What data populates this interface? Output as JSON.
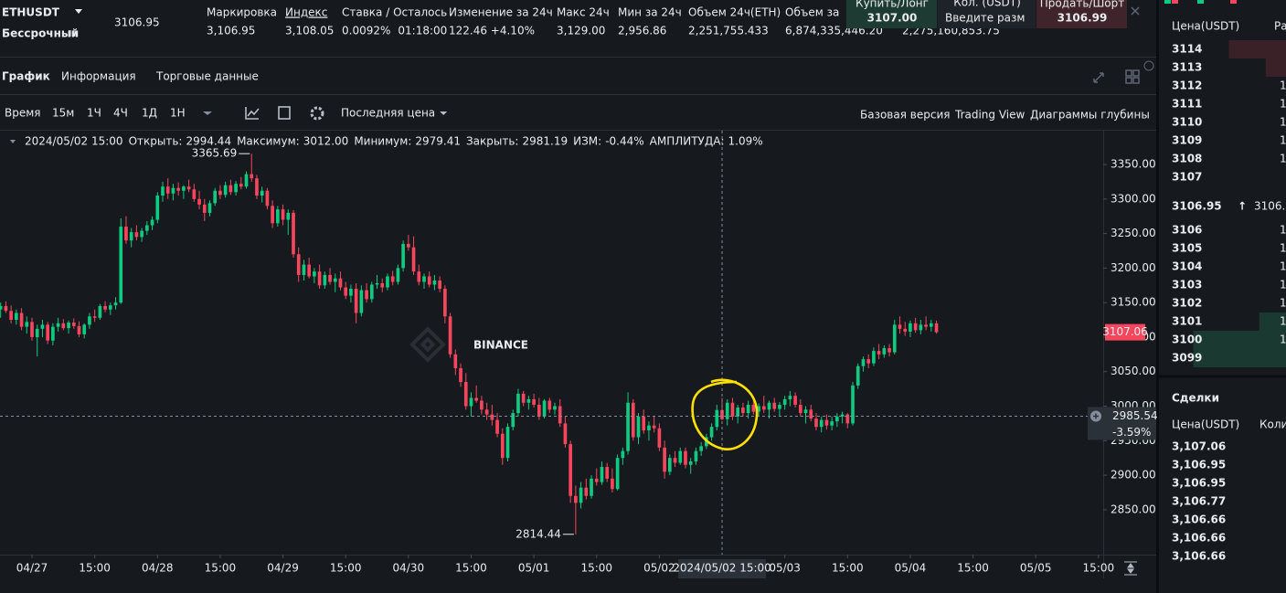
{
  "header": {
    "symbol": "ETHUSDT",
    "contract": "Бессрочный",
    "last_price": "3106.95",
    "stats": [
      {
        "label": "Маркировка",
        "value": "3,106.95"
      },
      {
        "label": "Индекс",
        "value": "3,108.05",
        "underlined": true
      },
      {
        "label": "Ставка / Осталось",
        "value": "0.0092%",
        "color": "#f0a030",
        "value2": "01:18:00"
      },
      {
        "label": "Изменение за 24ч",
        "value": "122.46 +4.10%",
        "color": "#0ecb81"
      },
      {
        "label": "Макс 24ч",
        "value": "3,129.00"
      },
      {
        "label": "Мин за 24ч",
        "value": "2,956.86"
      },
      {
        "label": "Объем 24ч(ETH)",
        "value": "2,251,755.433"
      },
      {
        "label": "Объем за",
        "value": "6,874,335,446.20"
      }
    ],
    "extra_value": "2,275,160,853.75",
    "trade": {
      "buy_label": "Купить/Лонг",
      "buy_price": "3107.00",
      "qty_label": "Кол. (USDT)",
      "qty_placeholder": "Введите разм",
      "sell_label": "Продать/Шорт",
      "sell_price": "3106.99"
    }
  },
  "tabs": [
    "График",
    "Информация",
    "Торговые данные"
  ],
  "active_tab": 0,
  "toolbar": {
    "time_label": "Время",
    "intervals": [
      "15м",
      "1Ч",
      "4Ч",
      "1Д",
      "1Н"
    ],
    "active_interval": 1,
    "price_type": "Последняя цена",
    "views": [
      "Базовая версия",
      "Trading View",
      "Диаграммы глубины"
    ],
    "active_view": 0
  },
  "chart_data": {
    "type": "candlestick",
    "info": {
      "date": "2024/05/02 15:00",
      "items": [
        {
          "label": "Открыть:",
          "value": "2994.44"
        },
        {
          "label": "Максимум:",
          "value": "3012.00"
        },
        {
          "label": "Минимум:",
          "value": "2979.41"
        },
        {
          "label": "Закрыть:",
          "value": "2981.19"
        },
        {
          "label": "ИЗМ:",
          "value": "-0.44%"
        },
        {
          "label": "АМПЛИТУДА:",
          "value": "1.09%"
        }
      ]
    },
    "watermark": "BINANCE",
    "up_color": "#0ecb81",
    "down_color": "#f6465d",
    "grid": false,
    "ylim": [
      2785,
      3399
    ],
    "yticks": [
      {
        "value": 3350,
        "label": "3350.00"
      },
      {
        "value": 3300,
        "label": "3300.00"
      },
      {
        "value": 3250,
        "label": "3250.00"
      },
      {
        "value": 3200,
        "label": "3200.00"
      },
      {
        "value": 3150,
        "label": "3150.00"
      },
      {
        "value": 3100,
        "label": "3100.00"
      },
      {
        "value": 3050,
        "label": "3050.00"
      },
      {
        "value": 3000,
        "label": "3000.00"
      },
      {
        "value": 2950,
        "label": "2950.00"
      },
      {
        "value": 2900,
        "label": "2900.00"
      },
      {
        "value": 2850,
        "label": "2850.00"
      }
    ],
    "xlim": [
      -0.12,
      210.9
    ],
    "xticks": [
      {
        "value": 6,
        "label": "04/27"
      },
      {
        "value": 18,
        "label": "15:00"
      },
      {
        "value": 30,
        "label": "04/28"
      },
      {
        "value": 42,
        "label": "15:00"
      },
      {
        "value": 54,
        "label": "04/29"
      },
      {
        "value": 66,
        "label": "15:00"
      },
      {
        "value": 78,
        "label": "04/30"
      },
      {
        "value": 90,
        "label": "15:00"
      },
      {
        "value": 102,
        "label": "05/01"
      },
      {
        "value": 114,
        "label": "15:00"
      },
      {
        "value": 126,
        "label": "05/02"
      },
      {
        "value": 150,
        "label": "05/03"
      },
      {
        "value": 162,
        "label": "15:00"
      },
      {
        "value": 174,
        "label": "05/04"
      },
      {
        "value": 186,
        "label": "15:00"
      },
      {
        "value": 198,
        "label": "05/05"
      },
      {
        "value": 210,
        "label": "15:00"
      }
    ],
    "crosshair": {
      "x": 138,
      "x_label": "2024/05/02 15:00",
      "price": 2985.54,
      "change": "-3.59%"
    },
    "candles": [
      [
        3140,
        3150,
        3128,
        3145
      ],
      [
        3145,
        3152,
        3135,
        3138
      ],
      [
        3138,
        3146,
        3120,
        3125
      ],
      [
        3125,
        3140,
        3118,
        3135
      ],
      [
        3135,
        3142,
        3110,
        3115
      ],
      [
        3115,
        3130,
        3105,
        3122
      ],
      [
        3122,
        3128,
        3095,
        3100
      ],
      [
        3100,
        3118,
        3072,
        3112
      ],
      [
        3112,
        3125,
        3100,
        3118
      ],
      [
        3118,
        3122,
        3090,
        3095
      ],
      [
        3095,
        3120,
        3088,
        3115
      ],
      [
        3115,
        3128,
        3108,
        3120
      ],
      [
        3120,
        3126,
        3110,
        3113
      ],
      [
        3113,
        3124,
        3105,
        3121
      ],
      [
        3121,
        3127,
        3112,
        3116
      ],
      [
        3116,
        3123,
        3100,
        3104
      ],
      [
        3104,
        3120,
        3098,
        3118
      ],
      [
        3118,
        3135,
        3112,
        3130
      ],
      [
        3130,
        3140,
        3122,
        3128
      ],
      [
        3128,
        3148,
        3125,
        3145
      ],
      [
        3145,
        3152,
        3136,
        3140
      ],
      [
        3140,
        3150,
        3132,
        3146
      ],
      [
        3146,
        3158,
        3140,
        3150
      ],
      [
        3150,
        3272,
        3148,
        3260
      ],
      [
        3260,
        3275,
        3235,
        3240
      ],
      [
        3240,
        3258,
        3230,
        3252
      ],
      [
        3252,
        3262,
        3240,
        3245
      ],
      [
        3245,
        3258,
        3238,
        3254
      ],
      [
        3254,
        3268,
        3248,
        3262
      ],
      [
        3262,
        3275,
        3255,
        3270
      ],
      [
        3270,
        3310,
        3265,
        3305
      ],
      [
        3305,
        3325,
        3296,
        3318
      ],
      [
        3318,
        3330,
        3300,
        3308
      ],
      [
        3308,
        3322,
        3298,
        3316
      ],
      [
        3316,
        3324,
        3305,
        3312
      ],
      [
        3312,
        3320,
        3300,
        3318
      ],
      [
        3318,
        3328,
        3310,
        3314
      ],
      [
        3314,
        3322,
        3296,
        3300
      ],
      [
        3300,
        3312,
        3285,
        3292
      ],
      [
        3292,
        3300,
        3268,
        3280
      ],
      [
        3280,
        3298,
        3275,
        3294
      ],
      [
        3294,
        3316,
        3290,
        3312
      ],
      [
        3312,
        3320,
        3300,
        3306
      ],
      [
        3306,
        3325,
        3302,
        3320
      ],
      [
        3320,
        3328,
        3306,
        3310
      ],
      [
        3310,
        3326,
        3305,
        3322
      ],
      [
        3322,
        3332,
        3314,
        3318
      ],
      [
        3318,
        3340,
        3315,
        3336
      ],
      [
        3336,
        3365.69,
        3325,
        3330
      ],
      [
        3330,
        3335,
        3300,
        3305
      ],
      [
        3305,
        3318,
        3295,
        3312
      ],
      [
        3312,
        3316,
        3285,
        3290
      ],
      [
        3290,
        3298,
        3258,
        3265
      ],
      [
        3265,
        3290,
        3260,
        3285
      ],
      [
        3285,
        3292,
        3262,
        3270
      ],
      [
        3270,
        3285,
        3248,
        3280
      ],
      [
        3280,
        3284,
        3215,
        3220
      ],
      [
        3220,
        3230,
        3180,
        3190
      ],
      [
        3190,
        3212,
        3182,
        3205
      ],
      [
        3205,
        3215,
        3185,
        3188
      ],
      [
        3188,
        3200,
        3178,
        3195
      ],
      [
        3195,
        3205,
        3170,
        3175
      ],
      [
        3175,
        3195,
        3170,
        3190
      ],
      [
        3190,
        3200,
        3176,
        3180
      ],
      [
        3180,
        3192,
        3165,
        3185
      ],
      [
        3185,
        3195,
        3168,
        3172
      ],
      [
        3172,
        3180,
        3155,
        3160
      ],
      [
        3160,
        3176,
        3150,
        3170
      ],
      [
        3170,
        3178,
        3120,
        3135
      ],
      [
        3135,
        3175,
        3130,
        3168
      ],
      [
        3168,
        3178,
        3150,
        3155
      ],
      [
        3155,
        3180,
        3150,
        3176
      ],
      [
        3176,
        3190,
        3170,
        3178
      ],
      [
        3178,
        3185,
        3165,
        3172
      ],
      [
        3172,
        3192,
        3168,
        3188
      ],
      [
        3188,
        3196,
        3175,
        3180
      ],
      [
        3180,
        3205,
        3176,
        3200
      ],
      [
        3200,
        3240,
        3195,
        3235
      ],
      [
        3235,
        3248,
        3225,
        3230
      ],
      [
        3230,
        3246,
        3190,
        3195
      ],
      [
        3195,
        3205,
        3175,
        3180
      ],
      [
        3180,
        3192,
        3170,
        3188
      ],
      [
        3188,
        3195,
        3172,
        3176
      ],
      [
        3176,
        3190,
        3168,
        3182
      ],
      [
        3182,
        3188,
        3165,
        3170
      ],
      [
        3170,
        3175,
        3120,
        3130
      ],
      [
        3130,
        3135,
        3070,
        3075
      ],
      [
        3075,
        3082,
        3045,
        3055
      ],
      [
        3055,
        3062,
        3028,
        3035
      ],
      [
        3035,
        3048,
        2995,
        3000
      ],
      [
        3000,
        3020,
        2985,
        3012
      ],
      [
        3012,
        3030,
        3005,
        3008
      ],
      [
        3008,
        3015,
        2988,
        2995
      ],
      [
        2995,
        3005,
        2980,
        2988
      ],
      [
        2988,
        3002,
        2972,
        2980
      ],
      [
        2980,
        2990,
        2955,
        2960
      ],
      [
        2960,
        2968,
        2915,
        2925
      ],
      [
        2925,
        2975,
        2920,
        2970
      ],
      [
        2970,
        2995,
        2965,
        2990
      ],
      [
        2990,
        3025,
        2985,
        3018
      ],
      [
        3018,
        3022,
        3000,
        3005
      ],
      [
        3005,
        3015,
        2995,
        3010
      ],
      [
        3010,
        3018,
        2998,
        3002
      ],
      [
        3002,
        3012,
        2980,
        2985
      ],
      [
        2985,
        3010,
        2982,
        3008
      ],
      [
        3008,
        3012,
        2990,
        2995
      ],
      [
        2995,
        3005,
        2988,
        3000
      ],
      [
        3000,
        3010,
        2970,
        2975
      ],
      [
        2975,
        2985,
        2940,
        2945
      ],
      [
        2945,
        2950,
        2860,
        2870
      ],
      [
        2870,
        2885,
        2814.44,
        2860
      ],
      [
        2860,
        2890,
        2852,
        2882
      ],
      [
        2882,
        2895,
        2865,
        2870
      ],
      [
        2870,
        2900,
        2866,
        2895
      ],
      [
        2895,
        2910,
        2885,
        2890
      ],
      [
        2890,
        2920,
        2886,
        2912
      ],
      [
        2912,
        2918,
        2890,
        2895
      ],
      [
        2895,
        2910,
        2875,
        2880
      ],
      [
        2880,
        2930,
        2878,
        2925
      ],
      [
        2925,
        2940,
        2915,
        2935
      ],
      [
        2935,
        3020,
        2930,
        3005
      ],
      [
        3005,
        3010,
        2950,
        2955
      ],
      [
        2955,
        2990,
        2945,
        2985
      ],
      [
        2985,
        2995,
        2960,
        2965
      ],
      [
        2965,
        2978,
        2950,
        2972
      ],
      [
        2972,
        2985,
        2962,
        2968
      ],
      [
        2968,
        2975,
        2935,
        2940
      ],
      [
        2940,
        2950,
        2895,
        2905
      ],
      [
        2905,
        2930,
        2900,
        2925
      ],
      [
        2925,
        2935,
        2912,
        2918
      ],
      [
        2918,
        2940,
        2915,
        2935
      ],
      [
        2935,
        2940,
        2910,
        2915
      ],
      [
        2915,
        2925,
        2902,
        2920
      ],
      [
        2920,
        2940,
        2915,
        2935
      ],
      [
        2935,
        2948,
        2928,
        2942
      ],
      [
        2942,
        2960,
        2938,
        2955
      ],
      [
        2955,
        2975,
        2950,
        2970
      ],
      [
        2970,
        3002,
        2965,
        2994.44
      ],
      [
        2994.44,
        3012,
        2979.41,
        2981.19
      ],
      [
        2981.19,
        3010,
        2972,
        3005
      ],
      [
        3005,
        3012,
        2980,
        2985
      ],
      [
        2985,
        3002,
        2975,
        2998
      ],
      [
        2998,
        3005,
        2985,
        2990
      ],
      [
        2990,
        3008,
        2982,
        3002
      ],
      [
        3002,
        3012,
        2988,
        2992
      ],
      [
        2992,
        3004,
        2985,
        3000
      ],
      [
        3000,
        3015,
        2990,
        2995
      ],
      [
        2995,
        3008,
        2982,
        3005
      ],
      [
        3005,
        3012,
        2992,
        2996
      ],
      [
        2996,
        3006,
        2985,
        3002
      ],
      [
        3002,
        3015,
        2995,
        3010
      ],
      [
        3010,
        3022,
        3000,
        3015
      ],
      [
        3015,
        3020,
        2998,
        3002
      ],
      [
        3002,
        3010,
        2985,
        2990
      ],
      [
        2990,
        3000,
        2975,
        2995
      ],
      [
        2995,
        3002,
        2978,
        2982
      ],
      [
        2982,
        2990,
        2965,
        2970
      ],
      [
        2970,
        2985,
        2962,
        2980
      ],
      [
        2980,
        2988,
        2966,
        2972
      ],
      [
        2972,
        2985,
        2965,
        2978
      ],
      [
        2978,
        2990,
        2970,
        2985
      ],
      [
        2985,
        2992,
        2975,
        2988
      ],
      [
        2988,
        2990,
        2968,
        2975
      ],
      [
        2975,
        3035,
        2972,
        3030
      ],
      [
        3030,
        3062,
        3025,
        3058
      ],
      [
        3058,
        3072,
        3050,
        3068
      ],
      [
        3068,
        3075,
        3055,
        3062
      ],
      [
        3062,
        3085,
        3058,
        3080
      ],
      [
        3080,
        3090,
        3068,
        3075
      ],
      [
        3075,
        3088,
        3070,
        3084
      ],
      [
        3084,
        3090,
        3072,
        3078
      ],
      [
        3078,
        3125,
        3075,
        3118
      ],
      [
        3118,
        3130,
        3105,
        3112
      ],
      [
        3112,
        3122,
        3102,
        3108
      ],
      [
        3108,
        3124,
        3100,
        3120
      ],
      [
        3120,
        3128,
        3106,
        3110
      ],
      [
        3110,
        3125,
        3104,
        3118
      ],
      [
        3118,
        3130,
        3110,
        3115
      ],
      [
        3115,
        3125,
        3108,
        3120
      ],
      [
        3120,
        3124,
        3105,
        3107.06
      ]
    ]
  },
  "order_book": {
    "price_header": "Цена(USDT)",
    "amount_header": "Ра",
    "asks": [
      {
        "price": 3114,
        "depth": 0.45
      },
      {
        "price": 3113,
        "depth": 0.16
      },
      {
        "price": 3112,
        "amount": "1"
      },
      {
        "price": 3111,
        "amount": "1"
      },
      {
        "price": 3110,
        "amount": "1"
      },
      {
        "price": 3109,
        "amount": "1"
      },
      {
        "price": 3108,
        "amount": "1"
      },
      {
        "price": 3107
      }
    ],
    "mid_price": 3106.95,
    "mid_arrow": "↑",
    "mark_price": 3106.95,
    "bids": [
      {
        "price": 3106,
        "amount": "1"
      },
      {
        "price": 3105,
        "amount": "1"
      },
      {
        "price": 3104,
        "amount": "1"
      },
      {
        "price": 3103,
        "amount": "1"
      },
      {
        "price": 3102,
        "amount": "1"
      },
      {
        "price": 3101,
        "amount": "1",
        "depth": 0.21
      },
      {
        "price": 3100,
        "amount": "1",
        "depth": 0.73
      },
      {
        "price": 3099,
        "depth": 0.73
      }
    ]
  },
  "trades": {
    "title": "Сделки",
    "price_header": "Цена(USDT)",
    "amount_header": "Коли",
    "rows": [
      {
        "price": "3,107.06",
        "side": "buy"
      },
      {
        "price": "3,106.95",
        "side": "buy"
      },
      {
        "price": "3,106.95",
        "side": "buy"
      },
      {
        "price": "3,106.77",
        "side": "buy"
      },
      {
        "price": "3,106.66",
        "side": "sell"
      },
      {
        "price": "3,106.66",
        "side": "sell"
      },
      {
        "price": "3,106.66",
        "side": "sell"
      }
    ]
  }
}
